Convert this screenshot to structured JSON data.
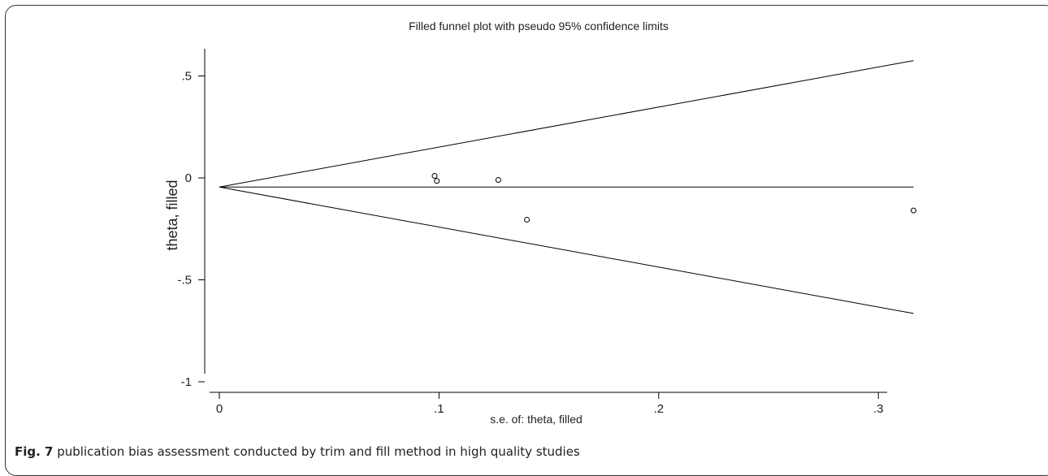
{
  "chart_data": {
    "type": "scatter",
    "title": "Filled funnel plot with pseudo 95% confidence limits",
    "xlabel": "s.e. of: theta, filled",
    "ylabel": "theta, filled",
    "xlim": [
      0,
      0.33
    ],
    "ylim": [
      -1.05,
      0.62
    ],
    "x_ticks": [
      {
        "value": 0,
        "label": "0"
      },
      {
        "value": 0.1,
        "label": ".1"
      },
      {
        "value": 0.2,
        "label": ".2"
      },
      {
        "value": 0.3,
        "label": ".3"
      }
    ],
    "y_ticks": [
      {
        "value": 0.5,
        "label": ".5"
      },
      {
        "value": 0,
        "label": "0"
      },
      {
        "value": -0.5,
        "label": "-.5"
      },
      {
        "value": -1,
        "label": "-1"
      }
    ],
    "grid": false,
    "pooled_estimate": -0.045,
    "pseudo_ci_limits": {
      "upper": [
        [
          0,
          -0.045
        ],
        [
          0.316,
          0.575
        ]
      ],
      "lower": [
        [
          0,
          -0.045
        ],
        [
          0.316,
          -0.665
        ]
      ]
    },
    "points": [
      {
        "x": 0.098,
        "y": 0.01
      },
      {
        "x": 0.099,
        "y": -0.015
      },
      {
        "x": 0.127,
        "y": -0.01
      },
      {
        "x": 0.14,
        "y": -0.205
      },
      {
        "x": 0.316,
        "y": -0.16
      }
    ]
  },
  "caption": {
    "label": "Fig. 7",
    "text": " publication bias assessment conducted by trim and fill method in high quality studies"
  }
}
